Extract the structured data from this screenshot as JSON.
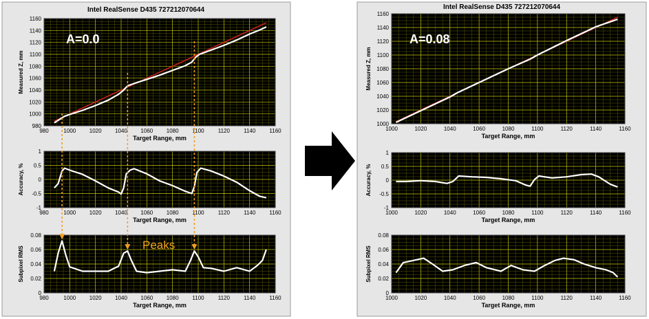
{
  "colors": {
    "panel_bg": "#e6e6e6",
    "plot_bg": "#000000",
    "grid": "#c8c800",
    "measured": "#ffffff",
    "ideal": "#e02020",
    "annotation": "#f0a020",
    "arrow": "#000000"
  },
  "icons": {
    "transition": "right-arrow-icon"
  },
  "panels": [
    {
      "title": "Intel RealSense D435  727212070644",
      "label": "A=0.0",
      "peaks_label": "Peaks"
    },
    {
      "title": "Intel RealSense D435  727212070644",
      "label": "A=0.08"
    }
  ],
  "chart_data": [
    {
      "type": "line",
      "panel": "A=0.0",
      "title": "Intel RealSense D435  727212070644",
      "xlabel": "Target Range, mm",
      "ylabel": "Measured Z, mm",
      "xlim": [
        980,
        1160
      ],
      "ylim": [
        980,
        1160
      ],
      "xticks": [
        980,
        1000,
        1020,
        1040,
        1060,
        1080,
        1100,
        1120,
        1140,
        1160
      ],
      "yticks": [
        980,
        1000,
        1020,
        1040,
        1060,
        1080,
        1100,
        1120,
        1140,
        1160
      ],
      "grid": true,
      "series": [
        {
          "color": "#e02020",
          "points": [
            [
              988,
              988
            ],
            [
              1153,
              1153
            ]
          ]
        },
        {
          "color": "#ffffff",
          "points": [
            [
              988,
              985
            ],
            [
              993,
              992
            ],
            [
              996,
              996
            ],
            [
              1000,
              999
            ],
            [
              1010,
              1006
            ],
            [
              1020,
              1014
            ],
            [
              1030,
              1023
            ],
            [
              1038,
              1033
            ],
            [
              1042,
              1040
            ],
            [
              1045,
              1047
            ],
            [
              1050,
              1051
            ],
            [
              1060,
              1058
            ],
            [
              1070,
              1065
            ],
            [
              1080,
              1073
            ],
            [
              1090,
              1081
            ],
            [
              1095,
              1087
            ],
            [
              1098,
              1095
            ],
            [
              1101,
              1100
            ],
            [
              1110,
              1107
            ],
            [
              1120,
              1115
            ],
            [
              1130,
              1124
            ],
            [
              1140,
              1134
            ],
            [
              1148,
              1141
            ],
            [
              1153,
              1146
            ]
          ]
        }
      ]
    },
    {
      "type": "line",
      "panel": "A=0.0",
      "xlabel": "Target Range, mm",
      "ylabel": "Accuracy, %",
      "xlim": [
        980,
        1160
      ],
      "ylim": [
        -1,
        1
      ],
      "xticks": [
        980,
        1000,
        1020,
        1040,
        1060,
        1080,
        1100,
        1120,
        1140,
        1160
      ],
      "yticks": [
        -1,
        -0.5,
        0,
        0.5,
        1
      ],
      "ytick_labels": [
        "-1",
        "-0.5",
        "0",
        "0.5",
        "1"
      ],
      "grid": true,
      "series": [
        {
          "color": "#ffffff",
          "points": [
            [
              988,
              -0.3
            ],
            [
              991,
              -0.15
            ],
            [
              994,
              0.3
            ],
            [
              996,
              0.4
            ],
            [
              1000,
              0.33
            ],
            [
              1010,
              0.18
            ],
            [
              1020,
              -0.05
            ],
            [
              1030,
              -0.3
            ],
            [
              1038,
              -0.45
            ],
            [
              1040,
              -0.52
            ],
            [
              1042,
              -0.3
            ],
            [
              1044,
              0.2
            ],
            [
              1047,
              0.33
            ],
            [
              1050,
              0.38
            ],
            [
              1060,
              0.2
            ],
            [
              1070,
              -0.05
            ],
            [
              1080,
              -0.22
            ],
            [
              1090,
              -0.42
            ],
            [
              1095,
              -0.5
            ],
            [
              1097,
              -0.25
            ],
            [
              1099,
              0.25
            ],
            [
              1102,
              0.4
            ],
            [
              1110,
              0.3
            ],
            [
              1120,
              0.12
            ],
            [
              1130,
              -0.1
            ],
            [
              1140,
              -0.4
            ],
            [
              1148,
              -0.6
            ],
            [
              1153,
              -0.65
            ]
          ]
        }
      ]
    },
    {
      "type": "line",
      "panel": "A=0.0",
      "xlabel": "Target Range, mm",
      "ylabel": "Subpixel RMS",
      "xlim": [
        980,
        1160
      ],
      "ylim": [
        0,
        0.08
      ],
      "xticks": [
        980,
        1000,
        1020,
        1040,
        1060,
        1080,
        1100,
        1120,
        1140,
        1160
      ],
      "yticks": [
        0,
        0.02,
        0.04,
        0.06,
        0.08
      ],
      "ytick_labels": [
        "0",
        "0.02",
        "0.04",
        "0.06",
        "0.08"
      ],
      "grid": true,
      "annotations": [
        "Peaks"
      ],
      "series": [
        {
          "color": "#ffffff",
          "points": [
            [
              988,
              0.03
            ],
            [
              991,
              0.055
            ],
            [
              994,
              0.072
            ],
            [
              997,
              0.052
            ],
            [
              1000,
              0.036
            ],
            [
              1010,
              0.03
            ],
            [
              1020,
              0.03
            ],
            [
              1030,
              0.03
            ],
            [
              1038,
              0.037
            ],
            [
              1042,
              0.055
            ],
            [
              1045,
              0.058
            ],
            [
              1048,
              0.045
            ],
            [
              1052,
              0.03
            ],
            [
              1060,
              0.028
            ],
            [
              1070,
              0.03
            ],
            [
              1080,
              0.032
            ],
            [
              1090,
              0.03
            ],
            [
              1094,
              0.045
            ],
            [
              1097,
              0.058
            ],
            [
              1100,
              0.05
            ],
            [
              1104,
              0.035
            ],
            [
              1110,
              0.034
            ],
            [
              1120,
              0.03
            ],
            [
              1130,
              0.035
            ],
            [
              1140,
              0.03
            ],
            [
              1146,
              0.038
            ],
            [
              1150,
              0.045
            ],
            [
              1153,
              0.06
            ]
          ]
        }
      ]
    },
    {
      "type": "line",
      "panel": "A=0.08",
      "title": "Intel RealSense D435  727212070644",
      "xlabel": "Target Range, mm",
      "ylabel": "Measured Z, mm",
      "xlim": [
        1000,
        1160
      ],
      "ylim": [
        1000,
        1160
      ],
      "xticks": [
        1000,
        1020,
        1040,
        1060,
        1080,
        1100,
        1120,
        1140,
        1160
      ],
      "yticks": [
        1000,
        1020,
        1040,
        1060,
        1080,
        1100,
        1120,
        1140,
        1160
      ],
      "grid": true,
      "series": [
        {
          "color": "#e02020",
          "points": [
            [
              1003,
              1003
            ],
            [
              1155,
              1155
            ]
          ]
        },
        {
          "color": "#ffffff",
          "points": [
            [
              1003,
              1002
            ],
            [
              1010,
              1009
            ],
            [
              1020,
              1019
            ],
            [
              1030,
              1029
            ],
            [
              1040,
              1039
            ],
            [
              1045,
              1045
            ],
            [
              1060,
              1060
            ],
            [
              1080,
              1080
            ],
            [
              1095,
              1094
            ],
            [
              1100,
              1100
            ],
            [
              1120,
              1121
            ],
            [
              1140,
              1141
            ],
            [
              1155,
              1152
            ]
          ]
        }
      ]
    },
    {
      "type": "line",
      "panel": "A=0.08",
      "xlabel": "Target Range, mm",
      "ylabel": "Accuracy, %",
      "xlim": [
        1000,
        1160
      ],
      "ylim": [
        -1,
        1
      ],
      "xticks": [
        1000,
        1020,
        1040,
        1060,
        1080,
        1100,
        1120,
        1140,
        1160
      ],
      "yticks": [
        -1,
        -0.5,
        0,
        0.5,
        1
      ],
      "ytick_labels": [
        "-1",
        "-0.5",
        "0",
        "0.5",
        "1"
      ],
      "grid": true,
      "series": [
        {
          "color": "#ffffff",
          "points": [
            [
              1003,
              -0.05
            ],
            [
              1010,
              -0.05
            ],
            [
              1020,
              -0.02
            ],
            [
              1030,
              -0.05
            ],
            [
              1038,
              -0.12
            ],
            [
              1042,
              -0.05
            ],
            [
              1046,
              0.15
            ],
            [
              1055,
              0.12
            ],
            [
              1065,
              0.1
            ],
            [
              1075,
              0.05
            ],
            [
              1085,
              -0.02
            ],
            [
              1092,
              -0.18
            ],
            [
              1095,
              -0.22
            ],
            [
              1098,
              0.02
            ],
            [
              1101,
              0.15
            ],
            [
              1110,
              0.08
            ],
            [
              1120,
              0.12
            ],
            [
              1130,
              0.2
            ],
            [
              1137,
              0.22
            ],
            [
              1142,
              0.12
            ],
            [
              1150,
              -0.15
            ],
            [
              1155,
              -0.25
            ]
          ]
        }
      ]
    },
    {
      "type": "line",
      "panel": "A=0.08",
      "xlabel": "Target Range, mm",
      "ylabel": "Subpixel RMS",
      "xlim": [
        1000,
        1160
      ],
      "ylim": [
        0,
        0.08
      ],
      "xticks": [
        1000,
        1020,
        1040,
        1060,
        1080,
        1100,
        1120,
        1140,
        1160
      ],
      "yticks": [
        0,
        0.02,
        0.04,
        0.06,
        0.08
      ],
      "ytick_labels": [
        "0",
        "0.02",
        "0.04",
        "0.06",
        "0.08"
      ],
      "grid": true,
      "series": [
        {
          "color": "#ffffff",
          "points": [
            [
              1003,
              0.028
            ],
            [
              1008,
              0.042
            ],
            [
              1015,
              0.045
            ],
            [
              1022,
              0.048
            ],
            [
              1028,
              0.04
            ],
            [
              1035,
              0.03
            ],
            [
              1042,
              0.032
            ],
            [
              1050,
              0.038
            ],
            [
              1058,
              0.042
            ],
            [
              1065,
              0.035
            ],
            [
              1075,
              0.03
            ],
            [
              1082,
              0.038
            ],
            [
              1090,
              0.032
            ],
            [
              1098,
              0.03
            ],
            [
              1105,
              0.038
            ],
            [
              1112,
              0.045
            ],
            [
              1118,
              0.048
            ],
            [
              1125,
              0.046
            ],
            [
              1132,
              0.04
            ],
            [
              1140,
              0.035
            ],
            [
              1147,
              0.032
            ],
            [
              1152,
              0.028
            ],
            [
              1155,
              0.022
            ]
          ]
        }
      ]
    }
  ]
}
